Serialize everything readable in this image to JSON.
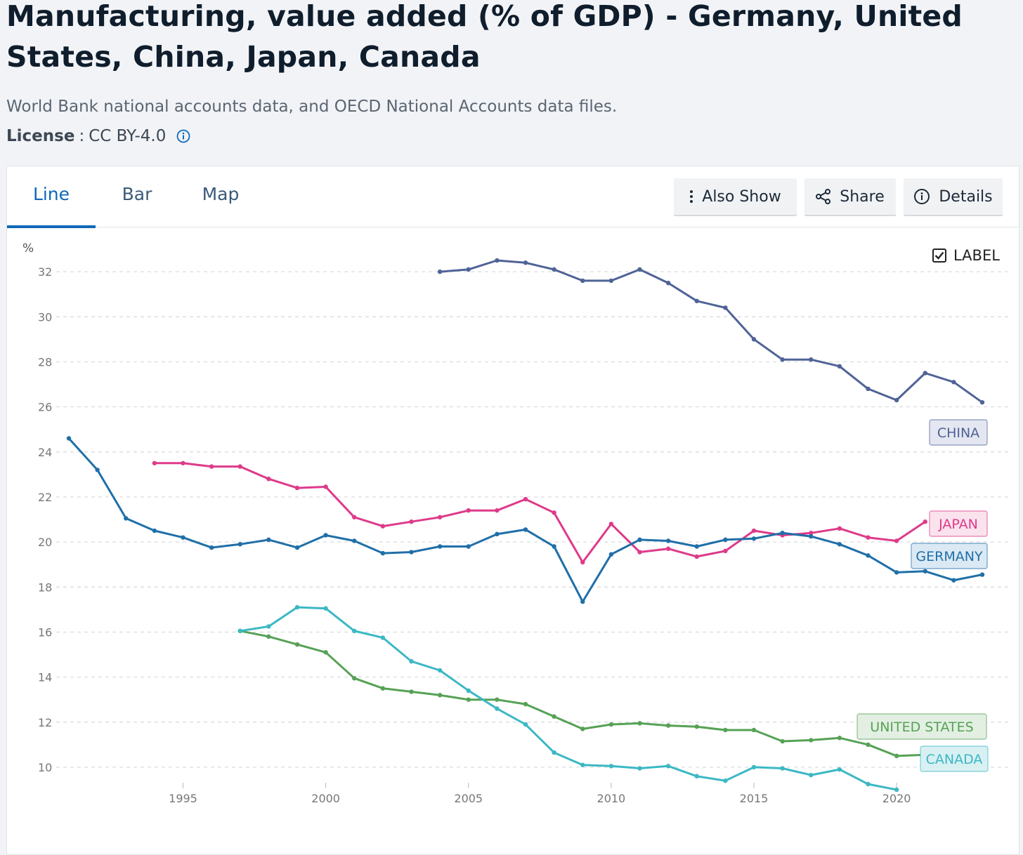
{
  "header": {
    "title": "Manufacturing, value added (% of GDP) - Germany, United States, China, Japan, Canada",
    "source": "World Bank national accounts data, and OECD National Accounts data files.",
    "license_label": "License",
    "license_sep": ":",
    "license_value": "CC BY-4.0"
  },
  "tabs": [
    {
      "label": "Line",
      "active": true
    },
    {
      "label": "Bar",
      "active": false
    },
    {
      "label": "Map",
      "active": false
    }
  ],
  "toolbar": {
    "also_show": "Also Show",
    "share": "Share",
    "details": "Details"
  },
  "label_toggle": {
    "label": "LABEL",
    "checked": true
  },
  "colors": {
    "accent": "#0f68b7",
    "china": "#4f6396",
    "japan": "#de3a8a",
    "germany": "#1f6fa8",
    "united_states": "#56a255",
    "canada": "#3bb8c4"
  },
  "chart_data": {
    "type": "line",
    "ylabel": "%",
    "xlim": [
      1991,
      2023
    ],
    "ylim": [
      9,
      33
    ],
    "yticks": [
      10,
      12,
      14,
      16,
      18,
      20,
      22,
      24,
      26,
      28,
      30,
      32
    ],
    "xticks": [
      1995,
      2000,
      2005,
      2010,
      2015,
      2020
    ],
    "grid": true,
    "series": [
      {
        "name": "CHINA",
        "color_key": "china",
        "points": [
          [
            2004,
            32.0
          ],
          [
            2005,
            32.1
          ],
          [
            2006,
            32.5
          ],
          [
            2007,
            32.4
          ],
          [
            2008,
            32.1
          ],
          [
            2009,
            31.6
          ],
          [
            2010,
            31.6
          ],
          [
            2011,
            32.1
          ],
          [
            2012,
            31.5
          ],
          [
            2013,
            30.7
          ],
          [
            2014,
            30.4
          ],
          [
            2015,
            29.0
          ],
          [
            2016,
            28.1
          ],
          [
            2017,
            28.1
          ],
          [
            2018,
            27.8
          ],
          [
            2019,
            26.8
          ],
          [
            2020,
            26.3
          ],
          [
            2021,
            27.5
          ],
          [
            2022,
            27.1
          ],
          [
            2023,
            26.2
          ]
        ]
      },
      {
        "name": "JAPAN",
        "color_key": "japan",
        "points": [
          [
            1994,
            23.5
          ],
          [
            1995,
            23.5
          ],
          [
            1996,
            23.35
          ],
          [
            1997,
            23.35
          ],
          [
            1998,
            22.8
          ],
          [
            1999,
            22.4
          ],
          [
            2000,
            22.45
          ],
          [
            2001,
            21.1
          ],
          [
            2002,
            20.7
          ],
          [
            2003,
            20.9
          ],
          [
            2004,
            21.1
          ],
          [
            2005,
            21.4
          ],
          [
            2006,
            21.4
          ],
          [
            2007,
            21.9
          ],
          [
            2008,
            21.3
          ],
          [
            2009,
            19.1
          ],
          [
            2010,
            20.8
          ],
          [
            2011,
            19.55
          ],
          [
            2012,
            19.7
          ],
          [
            2013,
            19.35
          ],
          [
            2014,
            19.6
          ],
          [
            2015,
            20.5
          ],
          [
            2016,
            20.3
          ],
          [
            2017,
            20.4
          ],
          [
            2018,
            20.6
          ],
          [
            2019,
            20.2
          ],
          [
            2020,
            20.05
          ],
          [
            2021,
            20.9
          ]
        ]
      },
      {
        "name": "GERMANY",
        "color_key": "germany",
        "points": [
          [
            1991,
            24.6
          ],
          [
            1992,
            23.2
          ],
          [
            1993,
            21.05
          ],
          [
            1994,
            20.5
          ],
          [
            1995,
            20.2
          ],
          [
            1996,
            19.75
          ],
          [
            1997,
            19.9
          ],
          [
            1998,
            20.1
          ],
          [
            1999,
            19.75
          ],
          [
            2000,
            20.3
          ],
          [
            2001,
            20.05
          ],
          [
            2002,
            19.5
          ],
          [
            2003,
            19.55
          ],
          [
            2004,
            19.8
          ],
          [
            2005,
            19.8
          ],
          [
            2006,
            20.35
          ],
          [
            2007,
            20.55
          ],
          [
            2008,
            19.8
          ],
          [
            2009,
            17.35
          ],
          [
            2010,
            19.45
          ],
          [
            2011,
            20.1
          ],
          [
            2012,
            20.05
          ],
          [
            2013,
            19.8
          ],
          [
            2014,
            20.1
          ],
          [
            2015,
            20.15
          ],
          [
            2016,
            20.4
          ],
          [
            2017,
            20.25
          ],
          [
            2018,
            19.9
          ],
          [
            2019,
            19.4
          ],
          [
            2020,
            18.65
          ],
          [
            2021,
            18.7
          ],
          [
            2022,
            18.3
          ],
          [
            2023,
            18.55
          ]
        ]
      },
      {
        "name": "UNITED STATES",
        "color_key": "united_states",
        "points": [
          [
            1997,
            16.05
          ],
          [
            1998,
            15.8
          ],
          [
            1999,
            15.45
          ],
          [
            2000,
            15.1
          ],
          [
            2001,
            13.95
          ],
          [
            2002,
            13.5
          ],
          [
            2003,
            13.35
          ],
          [
            2004,
            13.2
          ],
          [
            2005,
            13.0
          ],
          [
            2006,
            13.0
          ],
          [
            2007,
            12.8
          ],
          [
            2008,
            12.25
          ],
          [
            2009,
            11.7
          ],
          [
            2010,
            11.9
          ],
          [
            2011,
            11.95
          ],
          [
            2012,
            11.85
          ],
          [
            2013,
            11.8
          ],
          [
            2014,
            11.65
          ],
          [
            2015,
            11.65
          ],
          [
            2016,
            11.15
          ],
          [
            2017,
            11.2
          ],
          [
            2018,
            11.3
          ],
          [
            2019,
            11.0
          ],
          [
            2020,
            10.5
          ],
          [
            2021,
            10.55
          ]
        ]
      },
      {
        "name": "CANADA",
        "color_key": "canada",
        "points": [
          [
            1997,
            16.05
          ],
          [
            1998,
            16.25
          ],
          [
            1999,
            17.1
          ],
          [
            2000,
            17.05
          ],
          [
            2001,
            16.05
          ],
          [
            2002,
            15.75
          ],
          [
            2003,
            14.7
          ],
          [
            2004,
            14.3
          ],
          [
            2005,
            13.4
          ],
          [
            2006,
            12.6
          ],
          [
            2007,
            11.9
          ],
          [
            2008,
            10.65
          ],
          [
            2009,
            10.1
          ],
          [
            2010,
            10.05
          ],
          [
            2011,
            9.95
          ],
          [
            2012,
            10.05
          ],
          [
            2013,
            9.6
          ],
          [
            2014,
            9.4
          ],
          [
            2015,
            10.0
          ],
          [
            2016,
            9.95
          ],
          [
            2017,
            9.65
          ],
          [
            2018,
            9.9
          ],
          [
            2019,
            9.25
          ],
          [
            2020,
            9.0
          ]
        ]
      }
    ]
  }
}
